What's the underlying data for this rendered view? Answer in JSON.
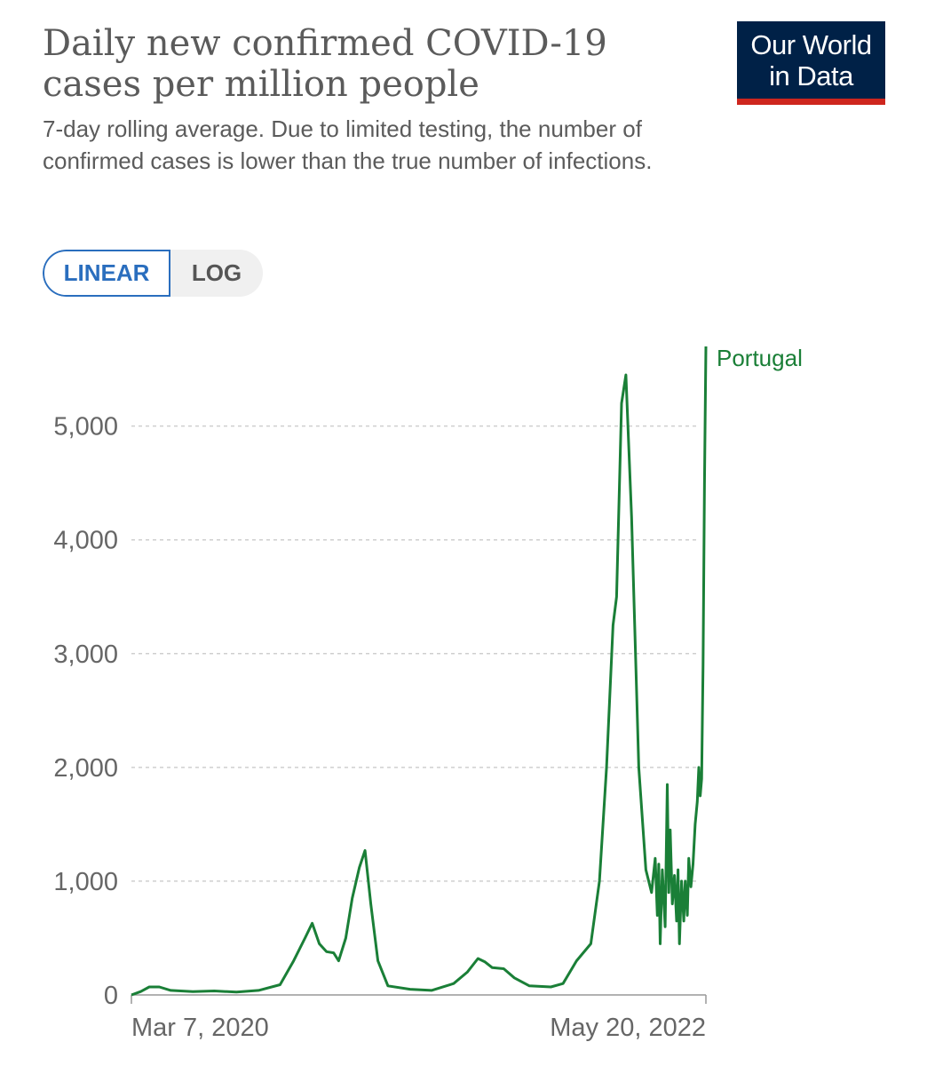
{
  "header": {
    "title": "Daily new confirmed COVID-19 cases per million people",
    "subtitle": "7-day rolling average. Due to limited testing, the number of confirmed cases is lower than the true number of infections.",
    "logo": {
      "line1": "Our World",
      "line2": "in Data",
      "bg": "#002147",
      "accent": "#ce261e"
    }
  },
  "scale_toggle": {
    "linear_label": "LINEAR",
    "log_label": "LOG",
    "selected": "LINEAR"
  },
  "chart_data": {
    "type": "line",
    "title": "Daily new confirmed COVID-19 cases per million people",
    "subtitle": "7-day rolling average. Due to limited testing, the number of confirmed cases is lower than the true number of infections.",
    "xlabel": "",
    "ylabel": "",
    "x_ticks": [
      "Mar 7, 2020",
      "May 20, 2022"
    ],
    "y_ticks": [
      0,
      1000,
      2000,
      3000,
      4000,
      5000
    ],
    "y_tick_labels": [
      "0",
      "1,000",
      "2,000",
      "3,000",
      "4,000",
      "5,000"
    ],
    "ylim": [
      0,
      5700
    ],
    "xlim": [
      "2020-03-07",
      "2022-05-20"
    ],
    "grid": "horizontal dashed",
    "legend": "inline label at line end",
    "series": [
      {
        "name": "Portugal",
        "color": "#1a7f37",
        "points": [
          [
            "2020-03-07",
            0
          ],
          [
            "2020-03-20",
            30
          ],
          [
            "2020-04-01",
            70
          ],
          [
            "2020-04-15",
            70
          ],
          [
            "2020-05-01",
            40
          ],
          [
            "2020-06-01",
            30
          ],
          [
            "2020-07-01",
            35
          ],
          [
            "2020-08-01",
            25
          ],
          [
            "2020-09-01",
            40
          ],
          [
            "2020-10-01",
            90
          ],
          [
            "2020-10-20",
            300
          ],
          [
            "2020-11-05",
            500
          ],
          [
            "2020-11-15",
            630
          ],
          [
            "2020-11-25",
            450
          ],
          [
            "2020-12-05",
            380
          ],
          [
            "2020-12-15",
            370
          ],
          [
            "2020-12-22",
            300
          ],
          [
            "2021-01-01",
            500
          ],
          [
            "2021-01-10",
            850
          ],
          [
            "2021-01-20",
            1120
          ],
          [
            "2021-01-28",
            1270
          ],
          [
            "2021-02-05",
            800
          ],
          [
            "2021-02-15",
            300
          ],
          [
            "2021-03-01",
            80
          ],
          [
            "2021-04-01",
            50
          ],
          [
            "2021-05-01",
            40
          ],
          [
            "2021-06-01",
            100
          ],
          [
            "2021-06-20",
            200
          ],
          [
            "2021-07-05",
            320
          ],
          [
            "2021-07-15",
            290
          ],
          [
            "2021-07-25",
            240
          ],
          [
            "2021-08-10",
            230
          ],
          [
            "2021-08-25",
            150
          ],
          [
            "2021-09-15",
            80
          ],
          [
            "2021-10-15",
            70
          ],
          [
            "2021-11-01",
            100
          ],
          [
            "2021-11-20",
            300
          ],
          [
            "2021-12-10",
            450
          ],
          [
            "2021-12-22",
            1000
          ],
          [
            "2022-01-01",
            2000
          ],
          [
            "2022-01-10",
            3250
          ],
          [
            "2022-01-15",
            3500
          ],
          [
            "2022-01-22",
            5200
          ],
          [
            "2022-01-28",
            5450
          ],
          [
            "2022-02-05",
            4200
          ],
          [
            "2022-02-15",
            2000
          ],
          [
            "2022-02-25",
            1100
          ],
          [
            "2022-03-05",
            900
          ],
          [
            "2022-03-10",
            1200
          ],
          [
            "2022-03-13",
            700
          ],
          [
            "2022-03-15",
            1150
          ],
          [
            "2022-03-17",
            450
          ],
          [
            "2022-03-20",
            1100
          ],
          [
            "2022-03-24",
            600
          ],
          [
            "2022-03-27",
            1850
          ],
          [
            "2022-03-29",
            900
          ],
          [
            "2022-03-31",
            1450
          ],
          [
            "2022-04-03",
            800
          ],
          [
            "2022-04-06",
            1050
          ],
          [
            "2022-04-09",
            650
          ],
          [
            "2022-04-11",
            1100
          ],
          [
            "2022-04-13",
            450
          ],
          [
            "2022-04-16",
            1000
          ],
          [
            "2022-04-19",
            650
          ],
          [
            "2022-04-21",
            1000
          ],
          [
            "2022-04-24",
            700
          ],
          [
            "2022-04-26",
            1200
          ],
          [
            "2022-04-29",
            950
          ],
          [
            "2022-05-02",
            1150
          ],
          [
            "2022-05-05",
            1500
          ],
          [
            "2022-05-08",
            1700
          ],
          [
            "2022-05-10",
            2000
          ],
          [
            "2022-05-12",
            1750
          ],
          [
            "2022-05-14",
            1900
          ],
          [
            "2022-05-16",
            2900
          ],
          [
            "2022-05-18",
            4500
          ],
          [
            "2022-05-20",
            5700
          ]
        ]
      }
    ]
  }
}
